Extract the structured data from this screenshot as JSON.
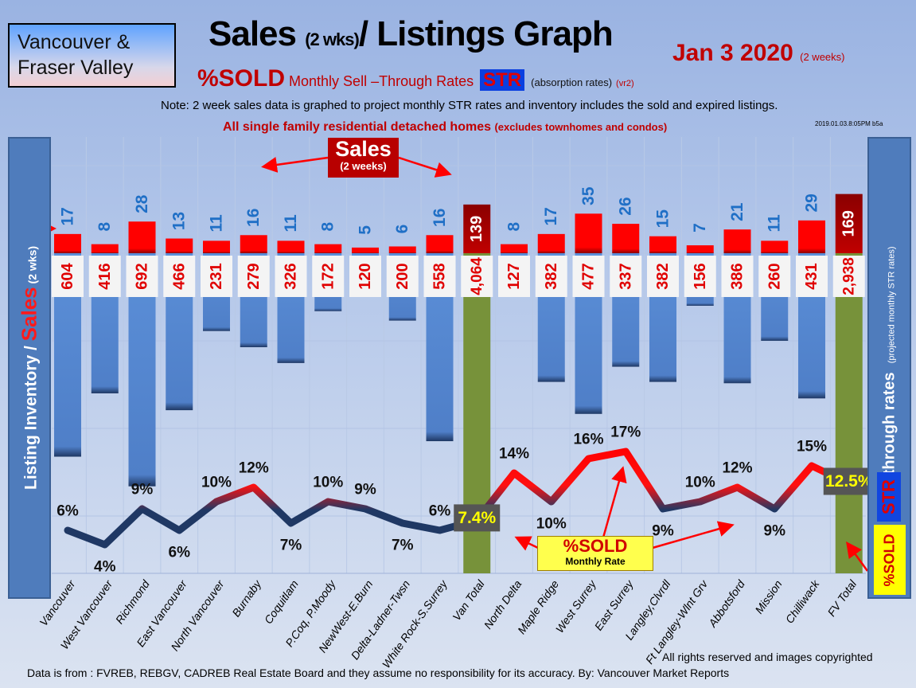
{
  "header": {
    "region_line1": "Vancouver &",
    "region_line2": "Fraser Valley",
    "title_a": "Sales ",
    "title_b": "(2 wks)",
    "title_c": "/ Listings Graph",
    "date": "Jan 3 2020",
    "date_note": "(2 weeks)",
    "sub_sold": "%SOLD",
    "sub_m": " Monthly ",
    "sub_rest": "Sell –Through Rates",
    "sub_str": "STR",
    "sub_abs": "(absorption rates)",
    "sub_vr": "(vr2)",
    "note": "Note: 2 week sales data is graphed to project monthly STR rates and inventory includes the sold and expired listings.",
    "scope": "All single family residential detached homes",
    "scope_small": "(excludes townhomes and condos)",
    "stamp": "2019.01.03.8:05PM b5a"
  },
  "left_panel": {
    "a": "Listing Inventory / ",
    "b": "Sales",
    "c": " (2 wks)"
  },
  "right_panel": {
    "a": "Sell-through rates",
    "b": "(projected monthly STR rates)",
    "str": "STR",
    "sold": "%SOLD"
  },
  "annotations": {
    "sales_title": "Sales",
    "sales_sub": "(2 weeks)",
    "sold_title": "%SOLD",
    "sold_sub": "Monthly Rate"
  },
  "footer": {
    "rights": "All rights reserved and  images copyrighted",
    "source": "Data is from : FVREB, REBGV, CADREB Real Estate Board and they assume no responsibility for its accuracy. By: Vancouver Market Reports"
  },
  "colors": {
    "sales": "#ff0000",
    "inventory": "#4f86d4",
    "total": "#77923a",
    "total_sales": "#a00000",
    "line_low": "#1f3864",
    "line_high": "#ff0000"
  },
  "chart_data": {
    "type": "bar",
    "title": "Sales (2 wks)/ Listings Graph",
    "categories": [
      "Vancouver",
      "West Vancouver",
      "Richmond",
      "East Vancouver",
      "North Vancouver",
      "Burnaby",
      "Coquitlam",
      "P.Coq,  P.Moody",
      "NewWest-E.Burn",
      "Delta-Ladner-Twsn",
      "White Rock-S.Surrey",
      "Van Total",
      "North Delta",
      "Maple Ridge",
      "West Surrey",
      "East Surrey",
      "Langley,Clvrdl",
      "Ft Langley-Wlnt Grv",
      "Abbotsford",
      "Mission",
      "Chilliwack",
      "FV Total"
    ],
    "totals": [
      false,
      false,
      false,
      false,
      false,
      false,
      false,
      false,
      false,
      false,
      false,
      true,
      false,
      false,
      false,
      false,
      false,
      false,
      false,
      false,
      false,
      true
    ],
    "series": [
      {
        "name": "Sales (2 weeks)",
        "values": [
          17,
          8,
          28,
          13,
          11,
          16,
          11,
          8,
          5,
          6,
          16,
          139,
          8,
          17,
          35,
          26,
          15,
          7,
          21,
          11,
          29,
          169
        ]
      },
      {
        "name": "Listing Inventory",
        "values": [
          604,
          416,
          692,
          466,
          231,
          279,
          326,
          172,
          120,
          200,
          558,
          4064,
          127,
          382,
          477,
          337,
          382,
          156,
          386,
          260,
          431,
          2938
        ]
      },
      {
        "name": "%SOLD Monthly Sell-Through Rate",
        "type": "line",
        "values": [
          6,
          4,
          9,
          6,
          10,
          12,
          7,
          10,
          9,
          7,
          6,
          7.4,
          14,
          10,
          16,
          17,
          9,
          10,
          12,
          9,
          15,
          12.5
        ]
      }
    ],
    "inventory_labels": [
      "604",
      "416",
      "692",
      "466",
      "231",
      "279",
      "326",
      "172",
      "120",
      "200",
      "558",
      "4,064",
      "127",
      "382",
      "477",
      "337",
      "382",
      "156",
      "386",
      "260",
      "431",
      "2,938"
    ],
    "str_labels": [
      "6%",
      "4%",
      "9%",
      "6%",
      "10%",
      "12%",
      "7%",
      "10%",
      "9%",
      "7%",
      "6%",
      "7.4%",
      "14%",
      "10%",
      "16%",
      "17%",
      "9%",
      "10%",
      "12%",
      "9%",
      "15%",
      "12.5%"
    ],
    "xlabel": "",
    "ylabel": "Listing Inventory / Sales (2 wks)",
    "y2label": "Sell-through rates"
  }
}
